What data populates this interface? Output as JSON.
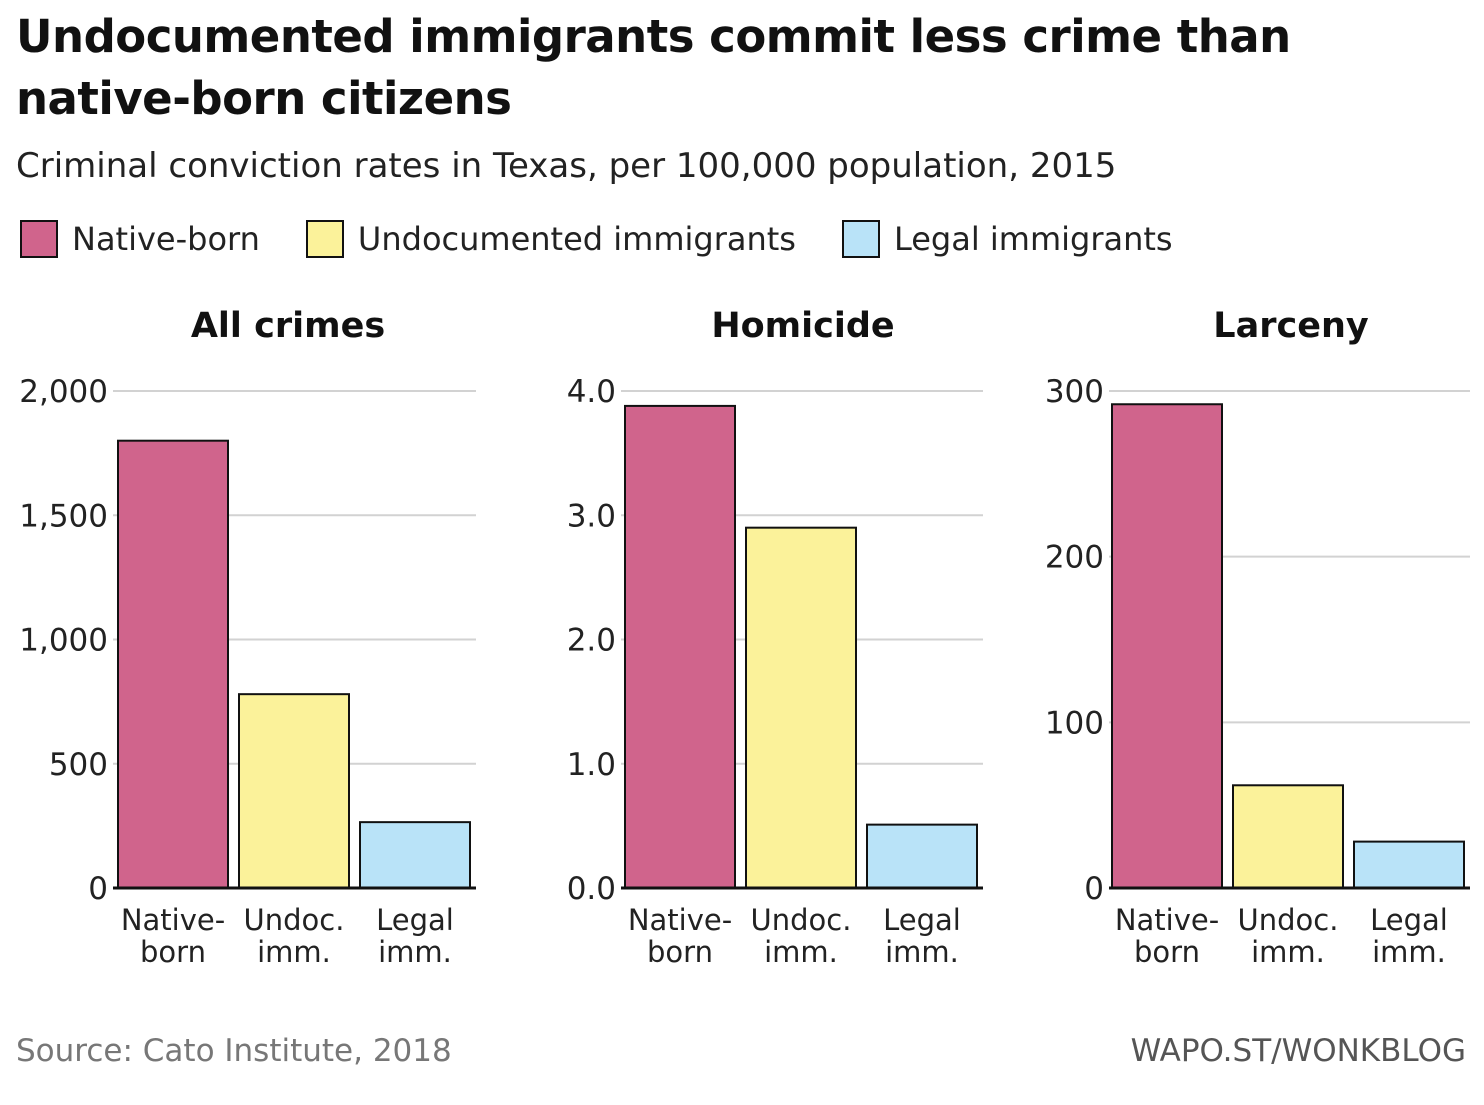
{
  "title": "Undocumented immigrants commit less crime than native-born citizens",
  "subtitle": "Criminal conviction rates in Texas, per 100,000 population, 2015",
  "legend": [
    {
      "label": "Native-born",
      "color": "#d0648c"
    },
    {
      "label": "Undocumented immigrants",
      "color": "#fbf29a"
    },
    {
      "label": "Legal immigrants",
      "color": "#b9e3f8"
    }
  ],
  "source": "Source: Cato Institute, 2018",
  "credit": "WAPO.ST/WONKBLOG",
  "chart_data": [
    {
      "type": "bar",
      "title": "All crimes",
      "categories": [
        [
          "Native-",
          "born"
        ],
        [
          "Undoc.",
          "imm."
        ],
        [
          "Legal",
          "imm."
        ]
      ],
      "values": [
        1800,
        780,
        265
      ],
      "colors": [
        "#d0648c",
        "#fbf29a",
        "#b9e3f8"
      ],
      "ylim": [
        0,
        2000
      ],
      "yticks": [
        0,
        500,
        1000,
        1500,
        2000
      ],
      "ytick_labels": [
        "0",
        "500",
        "1,000",
        "1,500",
        "2,000"
      ],
      "grid": true
    },
    {
      "type": "bar",
      "title": "Homicide",
      "categories": [
        [
          "Native-",
          "born"
        ],
        [
          "Undoc.",
          "imm."
        ],
        [
          "Legal",
          "imm."
        ]
      ],
      "values": [
        3.88,
        2.9,
        0.51
      ],
      "colors": [
        "#d0648c",
        "#fbf29a",
        "#b9e3f8"
      ],
      "ylim": [
        0,
        4
      ],
      "yticks": [
        0,
        1,
        2,
        3,
        4
      ],
      "ytick_labels": [
        "0.0",
        "1.0",
        "2.0",
        "3.0",
        "4.0"
      ],
      "grid": true
    },
    {
      "type": "bar",
      "title": "Larceny",
      "categories": [
        [
          "Native-",
          "born"
        ],
        [
          "Undoc.",
          "imm."
        ],
        [
          "Legal",
          "imm."
        ]
      ],
      "values": [
        292,
        62,
        28
      ],
      "colors": [
        "#d0648c",
        "#fbf29a",
        "#b9e3f8"
      ],
      "ylim": [
        0,
        300
      ],
      "yticks": [
        0,
        100,
        200,
        300
      ],
      "ytick_labels": [
        "0",
        "100",
        "200",
        "300"
      ],
      "grid": true
    }
  ]
}
